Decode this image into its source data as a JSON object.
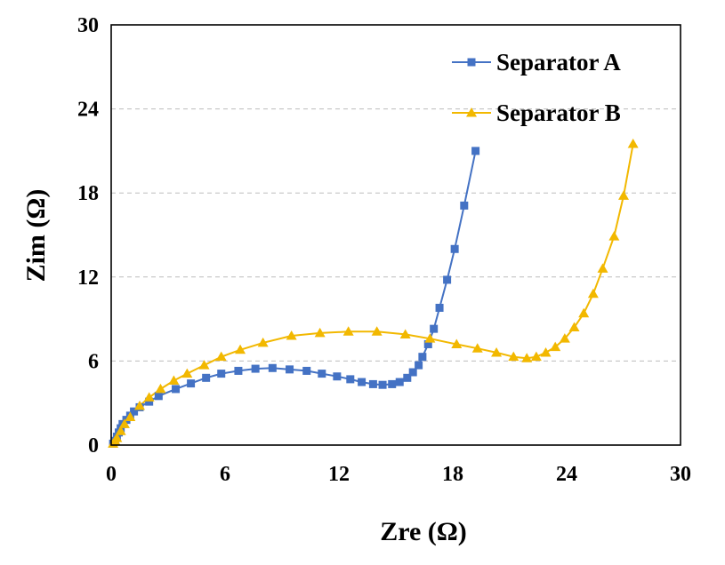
{
  "chart_data": {
    "type": "scatter",
    "xlabel": "Zre (Ω)",
    "ylabel": "Zim (Ω)",
    "xlim": [
      0,
      30
    ],
    "ylim": [
      0,
      30
    ],
    "x_ticks": [
      0,
      6,
      12,
      18,
      24,
      30
    ],
    "y_ticks": [
      0,
      6,
      12,
      18,
      24,
      30
    ],
    "grid": "horizontal dashed",
    "legend_position": "top-right",
    "series": [
      {
        "name": "Separator A",
        "color": "#4472c4",
        "marker": "square",
        "points": [
          [
            0.1,
            0.1
          ],
          [
            0.2,
            0.3
          ],
          [
            0.3,
            0.6
          ],
          [
            0.4,
            0.9
          ],
          [
            0.5,
            1.2
          ],
          [
            0.6,
            1.5
          ],
          [
            0.8,
            1.8
          ],
          [
            1.0,
            2.1
          ],
          [
            1.2,
            2.4
          ],
          [
            1.5,
            2.7
          ],
          [
            2.0,
            3.1
          ],
          [
            2.5,
            3.5
          ],
          [
            3.4,
            4.0
          ],
          [
            4.2,
            4.4
          ],
          [
            5.0,
            4.8
          ],
          [
            5.8,
            5.1
          ],
          [
            6.7,
            5.3
          ],
          [
            7.6,
            5.45
          ],
          [
            8.5,
            5.5
          ],
          [
            9.4,
            5.4
          ],
          [
            10.3,
            5.3
          ],
          [
            11.1,
            5.1
          ],
          [
            11.9,
            4.9
          ],
          [
            12.6,
            4.7
          ],
          [
            13.2,
            4.5
          ],
          [
            13.8,
            4.35
          ],
          [
            14.3,
            4.3
          ],
          [
            14.8,
            4.35
          ],
          [
            15.2,
            4.5
          ],
          [
            15.6,
            4.8
          ],
          [
            15.9,
            5.2
          ],
          [
            16.2,
            5.7
          ],
          [
            16.4,
            6.3
          ],
          [
            16.7,
            7.2
          ],
          [
            17.0,
            8.3
          ],
          [
            17.3,
            9.8
          ],
          [
            17.7,
            11.8
          ],
          [
            18.1,
            14.0
          ],
          [
            18.6,
            17.1
          ],
          [
            19.2,
            21.0
          ]
        ]
      },
      {
        "name": "Separator B",
        "color": "#f2b800",
        "marker": "triangle",
        "points": [
          [
            0.1,
            0.1
          ],
          [
            0.2,
            0.3
          ],
          [
            0.3,
            0.5
          ],
          [
            0.5,
            1.0
          ],
          [
            0.7,
            1.5
          ],
          [
            1.0,
            2.0
          ],
          [
            1.5,
            2.8
          ],
          [
            2.0,
            3.4
          ],
          [
            2.6,
            4.0
          ],
          [
            3.3,
            4.6
          ],
          [
            4.0,
            5.1
          ],
          [
            4.9,
            5.7
          ],
          [
            5.8,
            6.3
          ],
          [
            6.8,
            6.8
          ],
          [
            8.0,
            7.3
          ],
          [
            9.5,
            7.8
          ],
          [
            11.0,
            8.0
          ],
          [
            12.5,
            8.1
          ],
          [
            14.0,
            8.1
          ],
          [
            15.5,
            7.9
          ],
          [
            16.8,
            7.6
          ],
          [
            18.2,
            7.2
          ],
          [
            19.3,
            6.9
          ],
          [
            20.3,
            6.6
          ],
          [
            21.2,
            6.3
          ],
          [
            21.9,
            6.2
          ],
          [
            22.4,
            6.3
          ],
          [
            22.9,
            6.6
          ],
          [
            23.4,
            7.0
          ],
          [
            23.9,
            7.6
          ],
          [
            24.4,
            8.4
          ],
          [
            24.9,
            9.4
          ],
          [
            25.4,
            10.8
          ],
          [
            25.9,
            12.6
          ],
          [
            26.5,
            14.9
          ],
          [
            27.0,
            17.8
          ],
          [
            27.5,
            21.5
          ]
        ]
      }
    ]
  }
}
